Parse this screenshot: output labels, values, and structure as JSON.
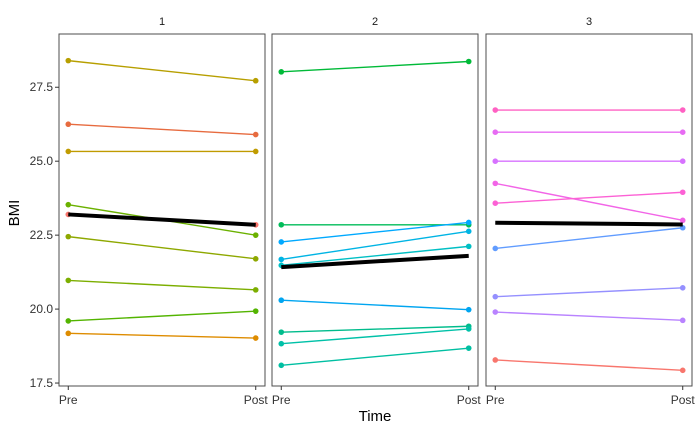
{
  "chart_data": {
    "type": "line",
    "xlabel": "Time",
    "ylabel": "BMI",
    "x_categories": [
      "Pre",
      "Post"
    ],
    "ylim": [
      17.4,
      29.3
    ],
    "y_ticks": [
      17.5,
      20.0,
      22.5,
      25.0,
      27.5
    ],
    "y_tick_labels": [
      "17.5",
      "20.0",
      "22.5",
      "25.0",
      "27.5"
    ],
    "grid": false,
    "legend": "none",
    "mean_line_color": "#000000",
    "panels": [
      {
        "label": "1",
        "mean": [
          23.2,
          22.85
        ],
        "series": [
          {
            "color": "#B79F00",
            "values": [
              28.4,
              27.72
            ]
          },
          {
            "color": "#E76B3F",
            "values": [
              26.25,
              25.9
            ]
          },
          {
            "color": "#C09B00",
            "values": [
              25.33,
              25.33
            ]
          },
          {
            "color": "#6BB100",
            "values": [
              23.53,
              22.5
            ]
          },
          {
            "color": "#F8766D",
            "values": [
              23.2,
              22.85
            ]
          },
          {
            "color": "#8EA800",
            "values": [
              22.45,
              21.7
            ]
          },
          {
            "color": "#7CAE00",
            "values": [
              20.97,
              20.65
            ]
          },
          {
            "color": "#53B400",
            "values": [
              19.6,
              19.93
            ]
          },
          {
            "color": "#DE8C00",
            "values": [
              19.18,
              19.02
            ]
          }
        ]
      },
      {
        "label": "2",
        "mean": [
          21.42,
          21.8
        ],
        "series": [
          {
            "color": "#00BA38",
            "values": [
              28.02,
              28.37
            ]
          },
          {
            "color": "#00BC59",
            "values": [
              22.85,
              22.85
            ]
          },
          {
            "color": "#00A9FF",
            "values": [
              22.27,
              22.93
            ]
          },
          {
            "color": "#00B4E4",
            "values": [
              21.68,
              22.63
            ]
          },
          {
            "color": "#00BFC4",
            "values": [
              21.48,
              22.12
            ]
          },
          {
            "color": "#00A5F0",
            "values": [
              20.3,
              19.98
            ]
          },
          {
            "color": "#00BC8C",
            "values": [
              19.22,
              19.42
            ]
          },
          {
            "color": "#00C1A8",
            "values": [
              18.83,
              19.33
            ]
          },
          {
            "color": "#00BFA2",
            "values": [
              18.1,
              18.68
            ]
          }
        ]
      },
      {
        "label": "3",
        "mean": [
          22.92,
          22.86
        ],
        "series": [
          {
            "color": "#FF61C3",
            "values": [
              26.73,
              26.73
            ]
          },
          {
            "color": "#E76BF3",
            "values": [
              25.98,
              25.98
            ]
          },
          {
            "color": "#D772FF",
            "values": [
              25.0,
              25.0
            ]
          },
          {
            "color": "#F265E7",
            "values": [
              24.25,
              23.0
            ]
          },
          {
            "color": "#FC61D5",
            "values": [
              23.58,
              23.95
            ]
          },
          {
            "color": "#619CFF",
            "values": [
              22.05,
              22.75
            ]
          },
          {
            "color": "#9590FF",
            "values": [
              20.42,
              20.72
            ]
          },
          {
            "color": "#B983FF",
            "values": [
              19.9,
              19.62
            ]
          },
          {
            "color": "#F8766D",
            "values": [
              18.28,
              17.93
            ]
          }
        ]
      }
    ]
  }
}
